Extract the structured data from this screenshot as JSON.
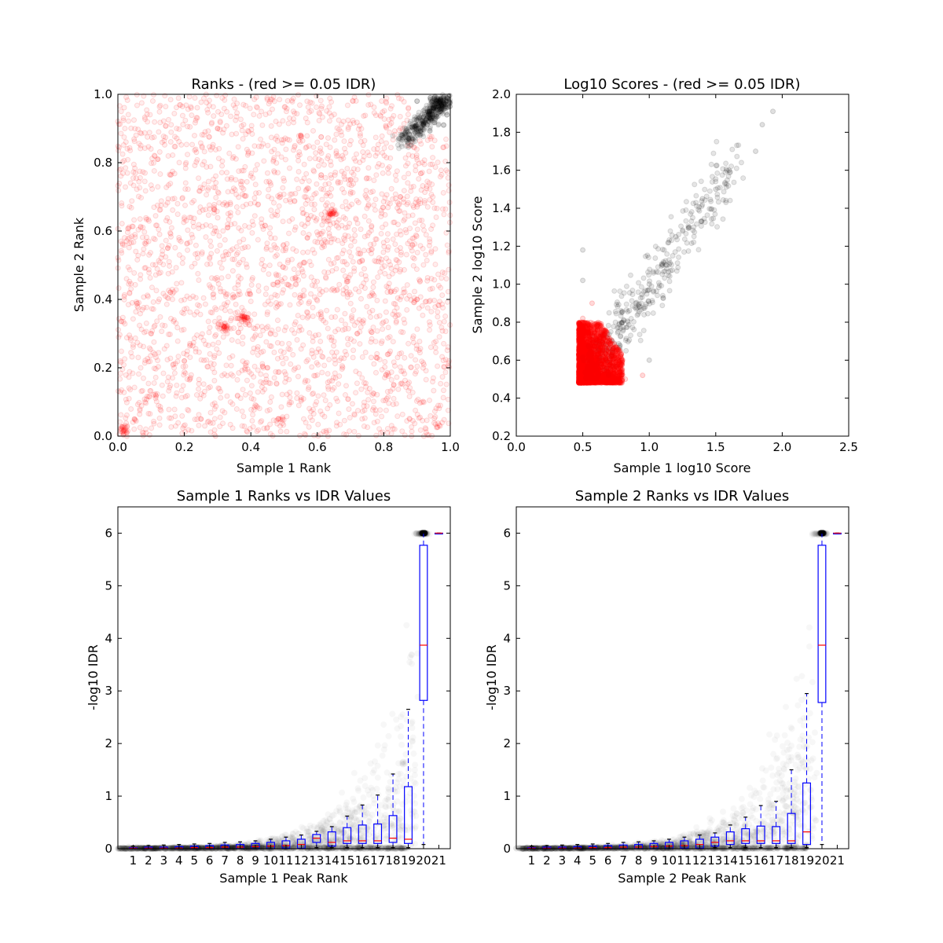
{
  "chart_data": [
    {
      "type": "scatter",
      "title": "Ranks - (red >= 0.05 IDR)",
      "xlabel": "Sample 1 Rank",
      "ylabel": "Sample 2 Rank",
      "xlim": [
        0.0,
        1.0
      ],
      "ylim": [
        0.0,
        1.0
      ],
      "xticks": [
        "0.0",
        "0.2",
        "0.4",
        "0.6",
        "0.8",
        "1.0"
      ],
      "yticks": [
        "0.0",
        "0.2",
        "0.4",
        "0.6",
        "0.8",
        "1.0"
      ],
      "colors": {
        "idr_ge_005": "#ff0000",
        "idr_lt_005": "#000000"
      },
      "marker_alpha": 0.07,
      "grid": false,
      "series": [
        {
          "color": "red",
          "points": [
            [
              0.12,
              0.81
            ],
            [
              0.33,
              0.61
            ],
            [
              0.57,
              0.58
            ],
            [
              0.64,
              0.65
            ],
            [
              0.32,
              0.32
            ],
            [
              0.38,
              0.35
            ],
            [
              0.05,
              0.05
            ],
            [
              0.2,
              0.22
            ],
            [
              0.48,
              0.45
            ],
            [
              0.83,
              0.15
            ],
            [
              0.9,
              0.4
            ],
            [
              0.72,
              0.3
            ],
            [
              0.15,
              0.55
            ],
            [
              0.55,
              0.88
            ],
            [
              0.3,
              0.9
            ],
            [
              0.7,
              0.75
            ],
            [
              0.45,
              0.2
            ],
            [
              0.1,
              0.3
            ],
            [
              0.85,
              0.7
            ],
            [
              0.25,
              0.05
            ]
          ]
        },
        {
          "color": "black",
          "points": [
            [
              0.99,
              0.99
            ],
            [
              0.98,
              0.97
            ],
            [
              0.96,
              0.98
            ],
            [
              0.97,
              0.95
            ],
            [
              0.94,
              0.99
            ],
            [
              0.99,
              0.94
            ],
            [
              0.93,
              0.93
            ],
            [
              0.95,
              0.96
            ],
            [
              0.9,
              0.98
            ],
            [
              0.98,
              0.91
            ]
          ]
        }
      ]
    },
    {
      "type": "scatter",
      "title": "Log10 Scores - (red >= 0.05 IDR)",
      "xlabel": "Sample 1 log10 Score",
      "ylabel": "Sample 2 log10 Score",
      "xlim": [
        0.0,
        2.5
      ],
      "ylim": [
        0.2,
        2.0
      ],
      "xticks": [
        "0.0",
        "0.5",
        "1.0",
        "1.5",
        "2.0",
        "2.5"
      ],
      "yticks": [
        "0.2",
        "0.4",
        "0.6",
        "0.8",
        "1.0",
        "1.2",
        "1.4",
        "1.6",
        "1.8",
        "2.0"
      ],
      "colors": {
        "idr_ge_005": "#ff0000",
        "idr_lt_005": "#000000"
      },
      "marker_alpha": 0.1,
      "grid": false,
      "series": [
        {
          "color": "red",
          "points": [
            [
              0.48,
              0.48
            ],
            [
              0.55,
              0.55
            ],
            [
              0.6,
              0.6
            ],
            [
              0.5,
              0.72
            ],
            [
              0.7,
              0.5
            ],
            [
              0.65,
              0.7
            ],
            [
              0.78,
              0.52
            ],
            [
              0.5,
              0.82
            ],
            [
              0.82,
              0.5
            ],
            [
              0.57,
              0.9
            ],
            [
              0.95,
              0.52
            ]
          ]
        },
        {
          "color": "black",
          "points": [
            [
              0.8,
              0.8
            ],
            [
              0.9,
              0.9
            ],
            [
              1.0,
              1.0
            ],
            [
              1.1,
              1.1
            ],
            [
              1.2,
              1.25
            ],
            [
              1.3,
              1.3
            ],
            [
              1.4,
              1.45
            ],
            [
              1.5,
              1.5
            ],
            [
              1.6,
              1.6
            ],
            [
              1.8,
              1.7
            ],
            [
              1.93,
              1.91
            ],
            [
              1.85,
              1.84
            ],
            [
              0.5,
              1.02
            ],
            [
              1.0,
              0.6
            ],
            [
              0.5,
              1.18
            ]
          ]
        }
      ]
    },
    {
      "type": "box",
      "title": "Sample 1 Ranks vs IDR Values",
      "xlabel": "Sample 1 Peak Rank",
      "ylabel": "-log10 IDR",
      "ylim": [
        0,
        6.5
      ],
      "yticks": [
        "0",
        "1",
        "2",
        "3",
        "4",
        "5",
        "6"
      ],
      "categories": [
        "1",
        "2",
        "3",
        "4",
        "5",
        "6",
        "7",
        "8",
        "9",
        "10",
        "11",
        "12",
        "13",
        "14",
        "15",
        "16",
        "17",
        "18",
        "19",
        "20",
        "21"
      ],
      "colors": {
        "box": "#0000ff",
        "median": "#ff0000",
        "whisker_cap": "#000000",
        "scatter": "#000000"
      },
      "boxes": [
        {
          "q1": 0.0,
          "median": 0.01,
          "q3": 0.02,
          "whisker_low": 0.0,
          "whisker_high": 0.05
        },
        {
          "q1": 0.0,
          "median": 0.01,
          "q3": 0.03,
          "whisker_low": 0.0,
          "whisker_high": 0.06
        },
        {
          "q1": 0.0,
          "median": 0.01,
          "q3": 0.03,
          "whisker_low": 0.0,
          "whisker_high": 0.07
        },
        {
          "q1": 0.0,
          "median": 0.01,
          "q3": 0.04,
          "whisker_low": 0.0,
          "whisker_high": 0.08
        },
        {
          "q1": 0.0,
          "median": 0.02,
          "q3": 0.05,
          "whisker_low": 0.0,
          "whisker_high": 0.09
        },
        {
          "q1": 0.0,
          "median": 0.02,
          "q3": 0.06,
          "whisker_low": 0.0,
          "whisker_high": 0.1
        },
        {
          "q1": 0.0,
          "median": 0.03,
          "q3": 0.07,
          "whisker_low": 0.0,
          "whisker_high": 0.12
        },
        {
          "q1": 0.0,
          "median": 0.03,
          "q3": 0.08,
          "whisker_low": 0.0,
          "whisker_high": 0.13
        },
        {
          "q1": 0.0,
          "median": 0.04,
          "q3": 0.1,
          "whisker_low": 0.0,
          "whisker_high": 0.15
        },
        {
          "q1": 0.0,
          "median": 0.05,
          "q3": 0.12,
          "whisker_low": 0.0,
          "whisker_high": 0.18
        },
        {
          "q1": 0.01,
          "median": 0.06,
          "q3": 0.15,
          "whisker_low": 0.0,
          "whisker_high": 0.22
        },
        {
          "q1": 0.01,
          "median": 0.08,
          "q3": 0.18,
          "whisker_low": 0.0,
          "whisker_high": 0.26
        },
        {
          "q1": 0.12,
          "median": 0.2,
          "q3": 0.27,
          "whisker_low": 0.02,
          "whisker_high": 0.33
        },
        {
          "q1": 0.05,
          "median": 0.12,
          "q3": 0.32,
          "whisker_low": 0.02,
          "whisker_high": 0.42
        },
        {
          "q1": 0.1,
          "median": 0.15,
          "q3": 0.4,
          "whisker_low": 0.02,
          "whisker_high": 0.62
        },
        {
          "q1": 0.1,
          "median": 0.15,
          "q3": 0.45,
          "whisker_low": 0.02,
          "whisker_high": 0.83
        },
        {
          "q1": 0.1,
          "median": 0.15,
          "q3": 0.47,
          "whisker_low": 0.02,
          "whisker_high": 1.02
        },
        {
          "q1": 0.12,
          "median": 0.2,
          "q3": 0.63,
          "whisker_low": 0.02,
          "whisker_high": 1.42
        },
        {
          "q1": 0.1,
          "median": 0.18,
          "q3": 1.18,
          "whisker_low": 0.02,
          "whisker_high": 2.65
        },
        {
          "q1": 2.82,
          "median": 3.87,
          "q3": 5.77,
          "whisker_low": 0.08,
          "whisker_high": 6.0
        },
        {
          "q1": 6.0,
          "median": 6.0,
          "q3": 6.0,
          "whisker_low": 6.0,
          "whisker_high": 6.0
        }
      ]
    },
    {
      "type": "box",
      "title": "Sample 2 Ranks vs IDR Values",
      "xlabel": "Sample 2 Peak Rank",
      "ylabel": "-log10 IDR",
      "ylim": [
        0,
        6.5
      ],
      "yticks": [
        "0",
        "1",
        "2",
        "3",
        "4",
        "5",
        "6"
      ],
      "categories": [
        "1",
        "2",
        "3",
        "4",
        "5",
        "6",
        "7",
        "8",
        "9",
        "10",
        "11",
        "12",
        "13",
        "14",
        "15",
        "16",
        "17",
        "18",
        "19",
        "20",
        "21"
      ],
      "colors": {
        "box": "#0000ff",
        "median": "#ff0000",
        "whisker_cap": "#000000",
        "scatter": "#000000"
      },
      "boxes": [
        {
          "q1": 0.0,
          "median": 0.01,
          "q3": 0.02,
          "whisker_low": 0.0,
          "whisker_high": 0.05
        },
        {
          "q1": 0.0,
          "median": 0.01,
          "q3": 0.03,
          "whisker_low": 0.0,
          "whisker_high": 0.06
        },
        {
          "q1": 0.0,
          "median": 0.01,
          "q3": 0.03,
          "whisker_low": 0.0,
          "whisker_high": 0.07
        },
        {
          "q1": 0.0,
          "median": 0.01,
          "q3": 0.04,
          "whisker_low": 0.0,
          "whisker_high": 0.08
        },
        {
          "q1": 0.0,
          "median": 0.02,
          "q3": 0.05,
          "whisker_low": 0.0,
          "whisker_high": 0.09
        },
        {
          "q1": 0.0,
          "median": 0.02,
          "q3": 0.06,
          "whisker_low": 0.0,
          "whisker_high": 0.1
        },
        {
          "q1": 0.0,
          "median": 0.03,
          "q3": 0.07,
          "whisker_low": 0.0,
          "whisker_high": 0.12
        },
        {
          "q1": 0.0,
          "median": 0.03,
          "q3": 0.08,
          "whisker_low": 0.0,
          "whisker_high": 0.13
        },
        {
          "q1": 0.0,
          "median": 0.04,
          "q3": 0.1,
          "whisker_low": 0.0,
          "whisker_high": 0.15
        },
        {
          "q1": 0.0,
          "median": 0.05,
          "q3": 0.12,
          "whisker_low": 0.0,
          "whisker_high": 0.18
        },
        {
          "q1": 0.01,
          "median": 0.06,
          "q3": 0.15,
          "whisker_low": 0.0,
          "whisker_high": 0.22
        },
        {
          "q1": 0.01,
          "median": 0.08,
          "q3": 0.18,
          "whisker_low": 0.0,
          "whisker_high": 0.26
        },
        {
          "q1": 0.05,
          "median": 0.12,
          "q3": 0.22,
          "whisker_low": 0.02,
          "whisker_high": 0.3
        },
        {
          "q1": 0.08,
          "median": 0.15,
          "q3": 0.32,
          "whisker_low": 0.02,
          "whisker_high": 0.45
        },
        {
          "q1": 0.1,
          "median": 0.15,
          "q3": 0.38,
          "whisker_low": 0.02,
          "whisker_high": 0.6
        },
        {
          "q1": 0.1,
          "median": 0.15,
          "q3": 0.43,
          "whisker_low": 0.02,
          "whisker_high": 0.82
        },
        {
          "q1": 0.1,
          "median": 0.15,
          "q3": 0.42,
          "whisker_low": 0.02,
          "whisker_high": 0.9
        },
        {
          "q1": 0.1,
          "median": 0.15,
          "q3": 0.67,
          "whisker_low": 0.02,
          "whisker_high": 1.5
        },
        {
          "q1": 0.08,
          "median": 0.32,
          "q3": 1.25,
          "whisker_low": 0.02,
          "whisker_high": 2.95
        },
        {
          "q1": 2.78,
          "median": 3.87,
          "q3": 5.77,
          "whisker_low": 0.08,
          "whisker_high": 6.0
        },
        {
          "q1": 6.0,
          "median": 6.0,
          "q3": 6.0,
          "whisker_low": 6.0,
          "whisker_high": 6.0
        }
      ]
    }
  ]
}
